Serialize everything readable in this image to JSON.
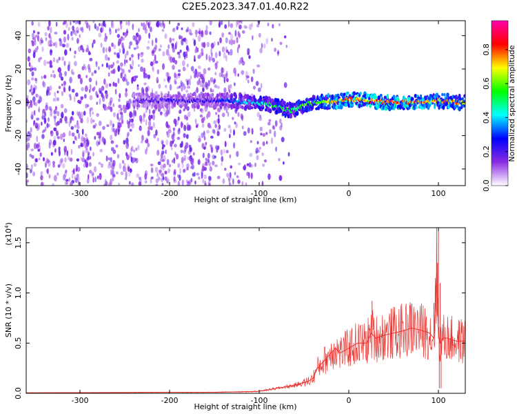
{
  "title": "C2E5.2023.347.01.40.R22",
  "chart_data": [
    {
      "type": "heatmap",
      "xlabel": "Height of straight line (km)",
      "ylabel": "Frequency (Hz)",
      "xlim": [
        -360,
        130
      ],
      "ylim": [
        -50,
        49
      ],
      "x_ticks": [
        -300,
        -200,
        -100,
        0,
        100
      ],
      "x_tick_labels": [
        "-300",
        "-200",
        "-100",
        "0",
        "100"
      ],
      "y_ticks": [
        -40,
        -20,
        0,
        20,
        40
      ],
      "y_tick_labels": [
        "-40",
        "-20",
        "0",
        "20",
        "40"
      ],
      "colorbar": {
        "label": "Normalized spectral amplitude",
        "range": [
          0,
          0.97
        ],
        "ticks": [
          0.0,
          0.2,
          0.4,
          0.6,
          0.8
        ],
        "tick_labels": [
          "0.0",
          "0.2",
          "0.4",
          "0.6",
          "0.8"
        ],
        "colors": [
          "#ffffff",
          "#8a2be2",
          "#0000ff",
          "#00ffff",
          "#00ff00",
          "#ffff00",
          "#ff0000",
          "#ff00aa"
        ]
      },
      "signal_track": {
        "x": [
          -240,
          -200,
          -160,
          -130,
          -110,
          -90,
          -75,
          -65,
          -55,
          -45,
          -30,
          -10,
          0,
          20,
          40,
          60,
          80,
          100,
          120,
          130
        ],
        "freq": [
          1,
          1,
          1,
          1,
          0,
          -1,
          -3,
          -5,
          -3,
          -1,
          0,
          1,
          2,
          1,
          0,
          0,
          0,
          1,
          0,
          0
        ],
        "amplitude": [
          0.2,
          0.25,
          0.25,
          0.35,
          0.45,
          0.55,
          0.6,
          0.55,
          0.6,
          0.65,
          0.7,
          0.8,
          0.85,
          0.85,
          0.9,
          0.9,
          0.85,
          0.8,
          0.8,
          0.75
        ]
      }
    },
    {
      "type": "line",
      "xlabel": "Height of straight line (km)",
      "ylabel": "SNR (10 * v/v)",
      "y_multiplier": "(x10",
      "y_multiplier_exp": "4",
      "y_multiplier_close": ")",
      "xlim": [
        -360,
        130
      ],
      "ylim": [
        0,
        1.65
      ],
      "x_ticks": [
        -300,
        -200,
        -100,
        0,
        100
      ],
      "x_tick_labels": [
        "-300",
        "-200",
        "-100",
        "0",
        "100"
      ],
      "y_ticks": [
        0.0,
        0.5,
        1.0,
        1.5
      ],
      "y_tick_labels": [
        "0.0",
        "0.5",
        "1.0",
        "1.5"
      ],
      "color": "#e8332f",
      "series": [
        {
          "name": "SNR",
          "x": [
            -360,
            -300,
            -250,
            -200,
            -150,
            -120,
            -100,
            -80,
            -60,
            -45,
            -40,
            -35,
            -30,
            -25,
            -20,
            -15,
            -10,
            0,
            10,
            20,
            25,
            30,
            40,
            50,
            60,
            70,
            80,
            90,
            95,
            98,
            100,
            102,
            105,
            110,
            120,
            130
          ],
          "y": [
            0.005,
            0.007,
            0.008,
            0.01,
            0.01,
            0.015,
            0.02,
            0.05,
            0.08,
            0.12,
            0.15,
            0.25,
            0.3,
            0.35,
            0.4,
            0.45,
            0.4,
            0.45,
            0.5,
            0.5,
            0.6,
            0.55,
            0.58,
            0.6,
            0.62,
            0.65,
            0.63,
            0.6,
            0.55,
            1.2,
            0.6,
            0.5,
            0.55,
            0.55,
            0.52,
            0.52
          ],
          "spikes": [
            {
              "x": 26,
              "y": 0.92
            },
            {
              "x": 68,
              "y": 0.88
            },
            {
              "x": 95,
              "y": 0.9
            },
            {
              "x": 99,
              "y": 1.3
            },
            {
              "x": 100,
              "y": 1.63
            },
            {
              "x": 102,
              "y": 1.1
            },
            {
              "x": 101,
              "y": 0.05
            },
            {
              "x": 103,
              "y": 0.05
            }
          ]
        }
      ]
    }
  ]
}
